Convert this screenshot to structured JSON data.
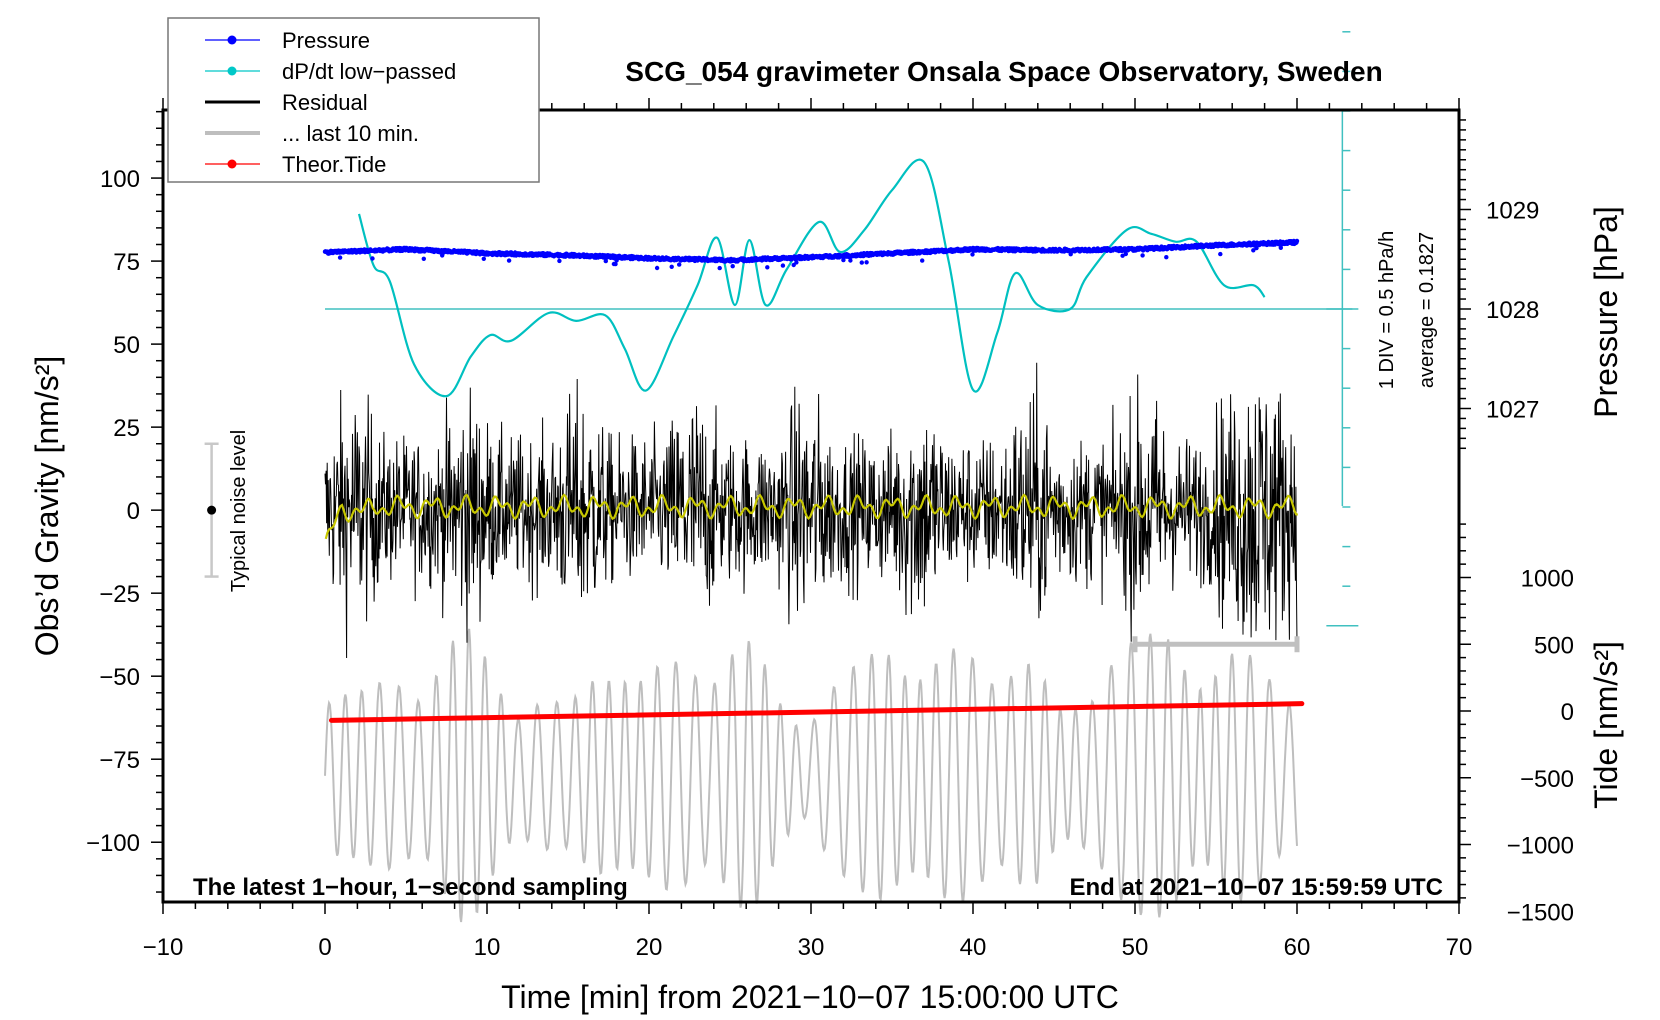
{
  "chart_data": {
    "type": "line",
    "title": "SCG_054 gravimeter Onsala Space Observatory, Sweden",
    "xlabel": "Time [min] from 2021−10−07 15:00:00 UTC",
    "ylabel_left": "Obs’d Gravity [nm/s²]",
    "ylabel_right_top": "Pressure [hPa]",
    "ylabel_right_bottom": "Tide [nm/s²]",
    "xlim": [
      -10,
      70
    ],
    "ylim_left": [
      -118,
      120.5
    ],
    "x_ticks": [
      "−10",
      "0",
      "10",
      "20",
      "30",
      "40",
      "50",
      "60",
      "70"
    ],
    "x_tick_values": [
      -10,
      0,
      10,
      20,
      30,
      40,
      50,
      60,
      70
    ],
    "y_left_ticks": [
      "100",
      "75",
      "50",
      "25",
      "0",
      "−25",
      "−50",
      "−75",
      "−100"
    ],
    "y_left_tick_values": [
      100,
      75,
      50,
      25,
      0,
      -25,
      -50,
      -75,
      -100
    ],
    "pressure_ticks": [
      "1029",
      "1028",
      "1027"
    ],
    "pressure_tick_values": [
      1029,
      1028,
      1027
    ],
    "tide_ticks": [
      "1000",
      "500",
      "0",
      "−500",
      "−1000",
      "−1500"
    ],
    "tide_tick_values": [
      1000,
      500,
      0,
      -500,
      -1000,
      -1500
    ],
    "grid": false,
    "legend_position": "top-left",
    "legend": [
      {
        "label": "Pressure",
        "color": "#0000ff",
        "marker": "dot"
      },
      {
        "label": "dP/dt low−passed",
        "color": "#00c8c8",
        "marker": "dot"
      },
      {
        "label": "Residual",
        "color": "#000000",
        "marker": "line"
      },
      {
        "label": "... last 10 min.",
        "color": "#bebebe",
        "marker": "line"
      },
      {
        "label": "Theor.Tide",
        "color": "#ff0000",
        "marker": "dot"
      }
    ],
    "series": [
      {
        "name": "Pressure",
        "unit": "hPa",
        "color": "#0000ff",
        "x": [
          0,
          5,
          10,
          15,
          20,
          25,
          30,
          35,
          40,
          45,
          50,
          55,
          60
        ],
        "values": [
          1028.57,
          1028.6,
          1028.56,
          1028.54,
          1028.51,
          1028.49,
          1028.52,
          1028.56,
          1028.6,
          1028.59,
          1028.6,
          1028.64,
          1028.67
        ]
      },
      {
        "name": "dP/dt low-passed",
        "unit": "hPa/h",
        "color": "#00c0c0",
        "baseline_average": 0.1827,
        "div_hPa_per_h": 0.5,
        "x": [
          2.1,
          3.0,
          4.0,
          5.5,
          7.5,
          9.0,
          10.2,
          11.5,
          13.8,
          15.5,
          17.3,
          18.5,
          19.8,
          21.5,
          23.0,
          24.2,
          25.3,
          26.2,
          27.2,
          28.5,
          30.5,
          31.8,
          33.3,
          35.0,
          37.0,
          38.5,
          40.0,
          41.5,
          42.6,
          44.0,
          46.0,
          47.0,
          49.5,
          51.0,
          52.5,
          53.8,
          55.5,
          57.3,
          58.0
        ],
        "values": [
          1.2,
          0.55,
          0.35,
          -0.7,
          -1.1,
          -0.6,
          -0.33,
          -0.4,
          -0.05,
          -0.15,
          -0.08,
          -0.5,
          -1.03,
          -0.35,
          0.3,
          0.9,
          0.05,
          0.87,
          0.05,
          0.5,
          1.1,
          0.72,
          1.0,
          1.5,
          1.85,
          0.6,
          -1.02,
          -0.3,
          0.45,
          0.05,
          0.0,
          0.4,
          1.0,
          0.95,
          0.85,
          0.85,
          0.3,
          0.3,
          0.15
        ]
      },
      {
        "name": "Residual",
        "unit": "nm/s²",
        "color": "#000000",
        "x_range": [
          0,
          60
        ],
        "sampling_s": 1,
        "typical_amplitude": 20,
        "approx_min": -53,
        "approx_max": 59
      },
      {
        "name": "Residual running mean",
        "color": "#c8c800",
        "x_range": [
          0,
          60
        ],
        "approx_range": [
          -12,
          7
        ]
      },
      {
        "name": "... last 10 min.",
        "unit": "nm/s²",
        "color": "#bebebe",
        "x_range": [
          0,
          60
        ],
        "approx_min": -120,
        "approx_max": -30
      },
      {
        "name": "Theor.Tide",
        "unit": "nm/s²",
        "color": "#ff0000",
        "x": [
          0.4,
          60.3
        ],
        "values": [
          -70,
          55
        ]
      }
    ],
    "annotations": {
      "noise_bar": {
        "label": "Typical noise level",
        "x": -7,
        "center": 0,
        "low": -20,
        "high": 20
      },
      "last10_bar": {
        "x_start": 50,
        "x_end": 60,
        "tide_level": 500
      },
      "dpdt_scale": {
        "div_label": "1 DIV = 0.5 hPa/h",
        "average_label": "average = 0.1827",
        "x": 62.8,
        "center_pressure": 1028,
        "divisions_above": 8,
        "divisions_below": 8
      },
      "bottom_left": "The latest 1−hour, 1−second sampling",
      "bottom_right": "End at 2021−10−07 15:59:59 UTC"
    }
  }
}
